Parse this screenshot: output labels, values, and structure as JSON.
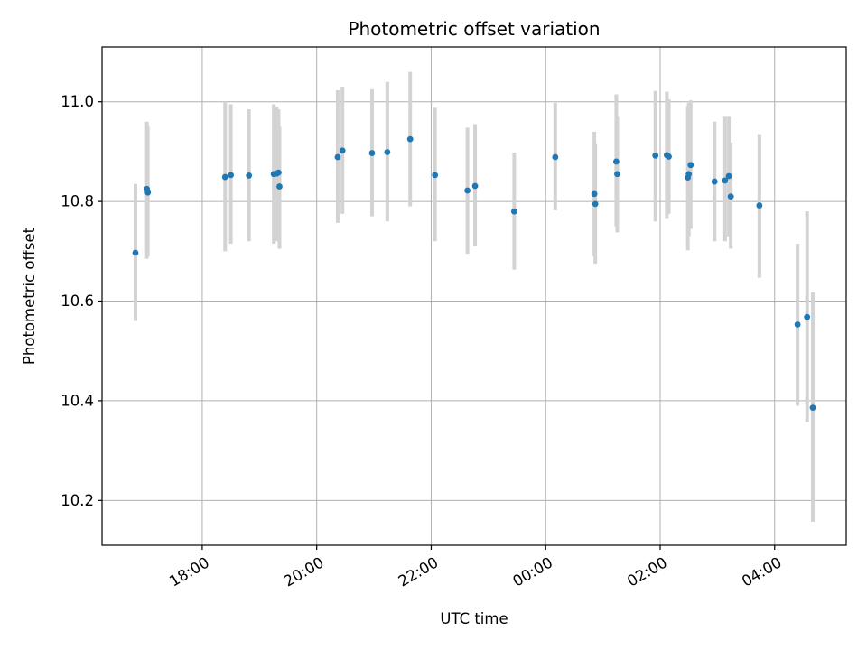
{
  "chart_data": {
    "type": "scatter",
    "title": "Photometric offset variation",
    "xlabel": "UTC time",
    "ylabel": "Photometric offset",
    "xlim": [
      "16:15",
      "05:15"
    ],
    "ylim": [
      10.11,
      11.11
    ],
    "xticks": [
      "18:00",
      "20:00",
      "22:00",
      "00:00",
      "02:00",
      "04:00"
    ],
    "yticks": [
      "10.2",
      "10.4",
      "10.6",
      "10.8",
      "11.0"
    ],
    "grid": true,
    "point_color": "#1f77b4",
    "errorbar_color": "#d3d3d3",
    "points": [
      {
        "x": "16:50",
        "y": 10.697,
        "lo": 10.56,
        "hi": 10.835
      },
      {
        "x": "17:02",
        "y": 10.825,
        "lo": 10.685,
        "hi": 10.96
      },
      {
        "x": "17:03",
        "y": 10.818,
        "lo": 10.69,
        "hi": 10.95
      },
      {
        "x": "18:24",
        "y": 10.849,
        "lo": 10.7,
        "hi": 11.0
      },
      {
        "x": "18:30",
        "y": 10.853,
        "lo": 10.715,
        "hi": 10.995
      },
      {
        "x": "18:49",
        "y": 10.852,
        "lo": 10.72,
        "hi": 10.985
      },
      {
        "x": "19:15",
        "y": 10.855,
        "lo": 10.715,
        "hi": 10.995
      },
      {
        "x": "19:18",
        "y": 10.856,
        "lo": 10.72,
        "hi": 10.99
      },
      {
        "x": "19:20",
        "y": 10.858,
        "lo": 10.725,
        "hi": 10.985
      },
      {
        "x": "19:21",
        "y": 10.83,
        "lo": 10.705,
        "hi": 10.95
      },
      {
        "x": "20:22",
        "y": 10.889,
        "lo": 10.757,
        "hi": 11.023
      },
      {
        "x": "20:27",
        "y": 10.902,
        "lo": 10.775,
        "hi": 11.03
      },
      {
        "x": "20:58",
        "y": 10.897,
        "lo": 10.77,
        "hi": 11.025
      },
      {
        "x": "21:14",
        "y": 10.899,
        "lo": 10.76,
        "hi": 11.04
      },
      {
        "x": "21:38",
        "y": 10.925,
        "lo": 10.79,
        "hi": 11.06
      },
      {
        "x": "22:04",
        "y": 10.853,
        "lo": 10.72,
        "hi": 10.988
      },
      {
        "x": "22:38",
        "y": 10.822,
        "lo": 10.695,
        "hi": 10.948
      },
      {
        "x": "22:46",
        "y": 10.831,
        "lo": 10.71,
        "hi": 10.955
      },
      {
        "x": "23:27",
        "y": 10.78,
        "lo": 10.663,
        "hi": 10.898
      },
      {
        "x": "00:10",
        "y": 10.889,
        "lo": 10.782,
        "hi": 10.998
      },
      {
        "x": "00:51",
        "y": 10.815,
        "lo": 10.69,
        "hi": 10.94
      },
      {
        "x": "00:52",
        "y": 10.795,
        "lo": 10.675,
        "hi": 10.915
      },
      {
        "x": "01:14",
        "y": 10.88,
        "lo": 10.75,
        "hi": 11.015
      },
      {
        "x": "01:15",
        "y": 10.855,
        "lo": 10.738,
        "hi": 10.97
      },
      {
        "x": "01:55",
        "y": 10.892,
        "lo": 10.76,
        "hi": 11.022
      },
      {
        "x": "02:07",
        "y": 10.893,
        "lo": 10.765,
        "hi": 11.02
      },
      {
        "x": "02:09",
        "y": 10.89,
        "lo": 10.775,
        "hi": 11.005
      },
      {
        "x": "02:29",
        "y": 10.848,
        "lo": 10.702,
        "hi": 10.992
      },
      {
        "x": "02:30",
        "y": 10.855,
        "lo": 10.73,
        "hi": 10.998
      },
      {
        "x": "02:32",
        "y": 10.873,
        "lo": 10.745,
        "hi": 11.003
      },
      {
        "x": "02:57",
        "y": 10.84,
        "lo": 10.72,
        "hi": 10.96
      },
      {
        "x": "03:08",
        "y": 10.842,
        "lo": 10.72,
        "hi": 10.97
      },
      {
        "x": "03:12",
        "y": 10.851,
        "lo": 10.73,
        "hi": 10.97
      },
      {
        "x": "03:14",
        "y": 10.81,
        "lo": 10.705,
        "hi": 10.918
      },
      {
        "x": "03:44",
        "y": 10.792,
        "lo": 10.647,
        "hi": 10.935
      },
      {
        "x": "04:24",
        "y": 10.553,
        "lo": 10.39,
        "hi": 10.715
      },
      {
        "x": "04:34",
        "y": 10.568,
        "lo": 10.357,
        "hi": 10.78
      },
      {
        "x": "04:40",
        "y": 10.386,
        "lo": 10.157,
        "hi": 10.617
      }
    ]
  }
}
